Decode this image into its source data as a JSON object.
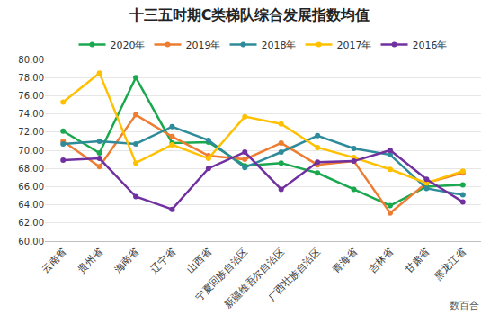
{
  "chart_data": {
    "type": "line",
    "title": "十三五时期C类梯队综合发展指数均值",
    "categories": [
      "云南省",
      "贵州省",
      "海南省",
      "辽宁省",
      "山西省",
      "宁夏回族自治区",
      "新疆维吾尔自治区",
      "广西壮族自治区",
      "青海省",
      "吉林省",
      "甘肃省",
      "黑龙江省"
    ],
    "series": [
      {
        "name": "2020年",
        "color": "#1aa84f",
        "values": [
          72.1,
          69.7,
          78.0,
          70.8,
          70.9,
          68.3,
          68.6,
          67.5,
          65.7,
          63.9,
          66.0,
          66.2
        ]
      },
      {
        "name": "2019年",
        "color": "#ed7d31",
        "values": [
          71.0,
          68.2,
          73.9,
          71.5,
          69.4,
          69.0,
          70.8,
          68.4,
          68.8,
          63.1,
          66.4,
          67.5
        ]
      },
      {
        "name": "2018年",
        "color": "#2e8b9a",
        "values": [
          70.7,
          71.0,
          70.7,
          72.6,
          71.1,
          68.1,
          69.8,
          71.6,
          70.2,
          69.5,
          65.8,
          65.1
        ]
      },
      {
        "name": "2017年",
        "color": "#ffc000",
        "values": [
          75.3,
          78.5,
          68.6,
          70.6,
          69.1,
          73.7,
          72.9,
          70.3,
          69.2,
          67.9,
          66.4,
          67.7
        ]
      },
      {
        "name": "2016年",
        "color": "#7030a0",
        "values": [
          68.9,
          69.1,
          64.9,
          63.5,
          68.0,
          69.8,
          65.7,
          68.7,
          68.8,
          70.0,
          66.8,
          64.3
        ]
      }
    ],
    "ylim": [
      60,
      80
    ],
    "yticks": [
      {
        "value": 60,
        "label": "60.00"
      },
      {
        "value": 62,
        "label": "62.00"
      },
      {
        "value": 64,
        "label": "64.00"
      },
      {
        "value": 66,
        "label": "66.00"
      },
      {
        "value": 68,
        "label": "68.00"
      },
      {
        "value": 70,
        "label": "70.00"
      },
      {
        "value": 72,
        "label": "72.00"
      },
      {
        "value": 74,
        "label": "74.00"
      },
      {
        "value": 76,
        "label": "76.00"
      },
      {
        "value": 78,
        "label": "78.00"
      },
      {
        "value": 80,
        "label": "80.00"
      }
    ],
    "grid": true,
    "legend": "top",
    "marker": "circle",
    "annotations": [
      "数百合"
    ]
  }
}
